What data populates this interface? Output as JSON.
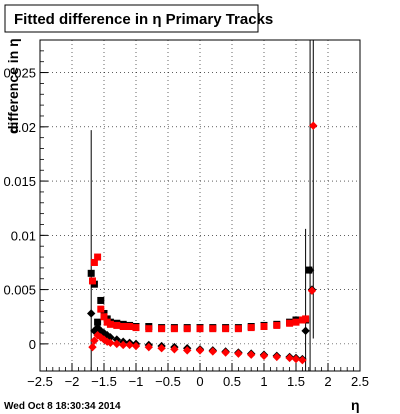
{
  "chart_data": {
    "type": "scatter",
    "title": "Fitted difference in η  Primary Tracks",
    "xlabel": "η",
    "ylabel": "difference in η",
    "xlim": [
      -2.5,
      2.5
    ],
    "ylim": [
      -0.0025,
      0.028
    ],
    "x_ticks": [
      -2.5,
      -2,
      -1.5,
      -1,
      -0.5,
      0,
      0.5,
      1,
      1.5,
      2,
      2.5
    ],
    "x_tick_labels": [
      "−2.5",
      "−2",
      "−1.5",
      "−1",
      "−0.5",
      "0",
      "0.5",
      "1",
      "1.5",
      "2",
      "2.5"
    ],
    "y_ticks": [
      0,
      0.005,
      0.01,
      0.015,
      0.02,
      0.025
    ],
    "y_tick_labels": [
      "0",
      "0.005",
      "0.01",
      "0.015",
      "0.02",
      "0.025"
    ],
    "grid": true,
    "timestamp": "Wed Oct  8 18:30:34 2014",
    "series": [
      {
        "marker": "square",
        "color": "#000000",
        "points": [
          [
            -1.7,
            0.0065
          ],
          [
            -1.65,
            0.0055
          ],
          [
            -1.6,
            0.002
          ],
          [
            -1.55,
            0.004
          ],
          [
            -1.5,
            0.0028
          ],
          [
            -1.45,
            0.0023
          ],
          [
            -1.4,
            0.002
          ],
          [
            -1.3,
            0.0019
          ],
          [
            -1.2,
            0.0018
          ],
          [
            -1.1,
            0.0017
          ],
          [
            -1,
            0.0016
          ],
          [
            -0.8,
            0.0016
          ],
          [
            -0.6,
            0.0015
          ],
          [
            -0.4,
            0.0015
          ],
          [
            -0.2,
            0.0015
          ],
          [
            0,
            0.0015
          ],
          [
            0.2,
            0.0015
          ],
          [
            0.4,
            0.0015
          ],
          [
            0.6,
            0.0015
          ],
          [
            0.8,
            0.0016
          ],
          [
            1,
            0.0017
          ],
          [
            1.2,
            0.0018
          ],
          [
            1.4,
            0.002
          ],
          [
            1.5,
            0.0022
          ],
          [
            1.6,
            0.0022
          ],
          [
            1.65,
            0.0022
          ],
          [
            1.7,
            0.0068
          ]
        ]
      },
      {
        "marker": "square",
        "color": "#ff0000",
        "points": [
          [
            -1.68,
            0.0058
          ],
          [
            -1.65,
            0.0075
          ],
          [
            -1.6,
            0.008
          ],
          [
            -1.55,
            0.0032
          ],
          [
            -1.5,
            0.0025
          ],
          [
            -1.45,
            0.002
          ],
          [
            -1.4,
            0.0018
          ],
          [
            -1.3,
            0.0017
          ],
          [
            -1.2,
            0.0016
          ],
          [
            -1.1,
            0.0016
          ],
          [
            -1,
            0.0015
          ],
          [
            -0.8,
            0.0014
          ],
          [
            -0.6,
            0.0014
          ],
          [
            -0.4,
            0.0014
          ],
          [
            -0.2,
            0.0014
          ],
          [
            0,
            0.0014
          ],
          [
            0.2,
            0.0014
          ],
          [
            0.4,
            0.0014
          ],
          [
            0.6,
            0.0014
          ],
          [
            0.8,
            0.0015
          ],
          [
            1,
            0.0016
          ],
          [
            1.2,
            0.0017
          ],
          [
            1.4,
            0.0019
          ],
          [
            1.5,
            0.002
          ],
          [
            1.6,
            0.0022
          ],
          [
            1.65,
            0.0023
          ]
        ]
      },
      {
        "marker": "diamond",
        "color": "#000000",
        "points": [
          [
            -1.7,
            0.0028
          ],
          [
            -1.65,
            0.0012
          ],
          [
            -1.6,
            0.0015
          ],
          [
            -1.55,
            0.0012
          ],
          [
            -1.5,
            0.001
          ],
          [
            -1.45,
            0.0008
          ],
          [
            -1.4,
            0.0006
          ],
          [
            -1.3,
            0.0004
          ],
          [
            -1.2,
            0.0002
          ],
          [
            -1.1,
            0.0001
          ],
          [
            -1,
            0.0
          ],
          [
            -0.8,
            -0.0001
          ],
          [
            -0.6,
            -0.0002
          ],
          [
            -0.4,
            -0.0003
          ],
          [
            -0.2,
            -0.0004
          ],
          [
            0,
            -0.0005
          ],
          [
            0.2,
            -0.0006
          ],
          [
            0.4,
            -0.0007
          ],
          [
            0.6,
            -0.0008
          ],
          [
            0.8,
            -0.0009
          ],
          [
            1,
            -0.001
          ],
          [
            1.2,
            -0.0011
          ],
          [
            1.4,
            -0.0012
          ],
          [
            1.5,
            -0.0013
          ],
          [
            1.6,
            -0.0014
          ],
          [
            1.65,
            0.0012
          ],
          [
            1.72,
            0.0068
          ],
          [
            1.75,
            0.005
          ]
        ]
      },
      {
        "marker": "diamond",
        "color": "#ff0000",
        "points": [
          [
            -1.68,
            -0.0003
          ],
          [
            -1.65,
            0.0003
          ],
          [
            -1.6,
            0.0008
          ],
          [
            -1.55,
            0.0006
          ],
          [
            -1.5,
            0.0004
          ],
          [
            -1.45,
            0.0002
          ],
          [
            -1.4,
            0.0001
          ],
          [
            -1.3,
            0.0
          ],
          [
            -1.2,
            -0.0001
          ],
          [
            -1.1,
            -0.0001
          ],
          [
            -1,
            -0.0002
          ],
          [
            -0.8,
            -0.0003
          ],
          [
            -0.6,
            -0.0004
          ],
          [
            -0.4,
            -0.0005
          ],
          [
            -0.2,
            -0.0006
          ],
          [
            0,
            -0.0006
          ],
          [
            0.2,
            -0.0007
          ],
          [
            0.4,
            -0.0008
          ],
          [
            0.6,
            -0.0009
          ],
          [
            0.8,
            -0.001
          ],
          [
            1,
            -0.0011
          ],
          [
            1.2,
            -0.0012
          ],
          [
            1.4,
            -0.0013
          ],
          [
            1.5,
            -0.0014
          ],
          [
            1.6,
            -0.0015
          ],
          [
            1.75,
            0.0049
          ],
          [
            1.77,
            0.0201
          ]
        ]
      }
    ],
    "error_bars": [
      {
        "x": -1.7,
        "y": 0.0065,
        "low": -0.0025,
        "high": 0.0197
      },
      {
        "x": 1.65,
        "y": 0.0065,
        "low": -0.0025,
        "high": 0.0106
      },
      {
        "x": 1.72,
        "y": 0.0068,
        "low": -0.0025,
        "high": 0.028
      },
      {
        "x": 1.77,
        "y": 0.0201,
        "low": 0.0005,
        "high": 0.028
      }
    ]
  }
}
